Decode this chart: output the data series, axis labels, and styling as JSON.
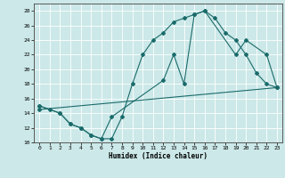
{
  "xlabel": "Humidex (Indice chaleur)",
  "xlim": [
    -0.5,
    23.5
  ],
  "ylim": [
    10,
    29
  ],
  "xticks": [
    0,
    1,
    2,
    3,
    4,
    5,
    6,
    7,
    8,
    9,
    10,
    11,
    12,
    13,
    14,
    15,
    16,
    17,
    18,
    19,
    20,
    21,
    22,
    23
  ],
  "yticks": [
    10,
    12,
    14,
    16,
    18,
    20,
    22,
    24,
    26,
    28
  ],
  "bg_color": "#cce8e8",
  "line_color": "#1a6b6b",
  "grid_color": "#ffffff",
  "line1_x": [
    0,
    1,
    2,
    3,
    4,
    5,
    6,
    7,
    8,
    9,
    10,
    11,
    12,
    13,
    14,
    15,
    16,
    17,
    18,
    19,
    20,
    21,
    22,
    23
  ],
  "line1_y": [
    15,
    14.5,
    14,
    12.5,
    12,
    11,
    10.5,
    10.5,
    13.5,
    18,
    22,
    24,
    25,
    26.5,
    27,
    27.5,
    28,
    27,
    25,
    24,
    22,
    19.5,
    18,
    17.5
  ],
  "line2_x": [
    0,
    2,
    3,
    4,
    5,
    6,
    7,
    12,
    13,
    14,
    15,
    16,
    19,
    20,
    22,
    23
  ],
  "line2_y": [
    15,
    14,
    12.5,
    12,
    11,
    10.5,
    13.5,
    18.5,
    22,
    18,
    27.5,
    28,
    22,
    24,
    22,
    17.5
  ],
  "line3_x": [
    0,
    23
  ],
  "line3_y": [
    14.5,
    17.5
  ]
}
